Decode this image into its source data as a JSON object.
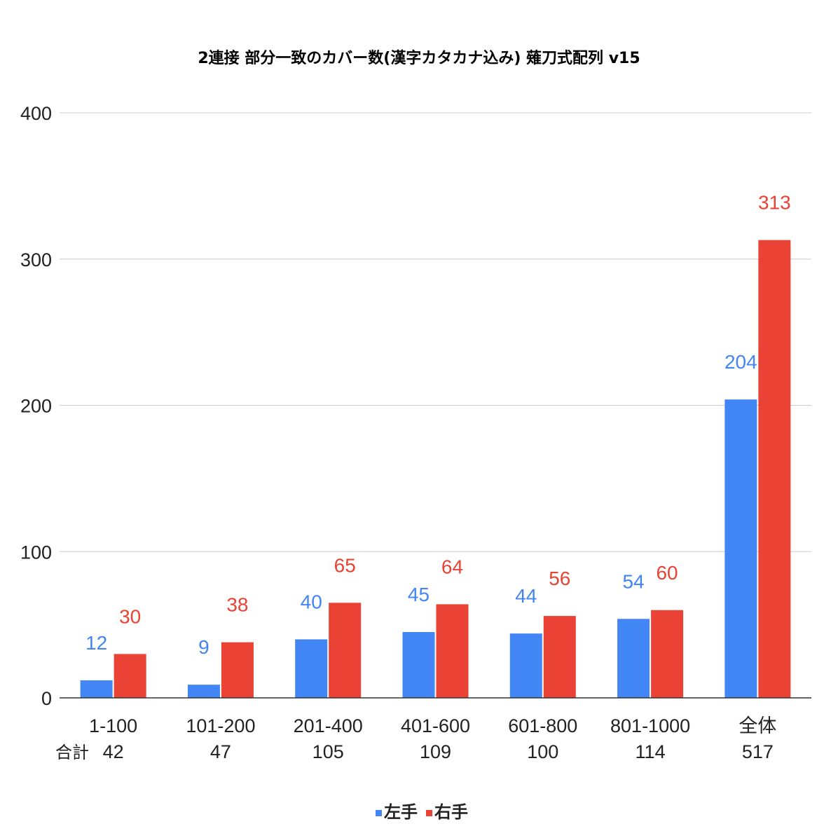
{
  "chart_data": {
    "type": "bar",
    "title": "2連接 部分一致のカバー数(漢字カタカナ込み) 薙刀式配列 v15",
    "xlabel": "",
    "ylabel": "",
    "ylim": [
      0,
      400
    ],
    "yticks": [
      0,
      100,
      200,
      300,
      400
    ],
    "grid": true,
    "legend_position": "bottom",
    "categories": [
      "1-100",
      "101-200",
      "201-400",
      "401-600",
      "601-800",
      "801-1000",
      "全体"
    ],
    "totals_label": "合計",
    "totals": [
      "42",
      "47",
      "105",
      "109",
      "100",
      "114",
      "517"
    ],
    "series": [
      {
        "name": "左手",
        "color": "#4285f4",
        "values": [
          12,
          9,
          40,
          45,
          44,
          54,
          204
        ]
      },
      {
        "name": "右手",
        "color": "#ea4335",
        "values": [
          30,
          38,
          65,
          64,
          56,
          60,
          313
        ]
      }
    ]
  }
}
